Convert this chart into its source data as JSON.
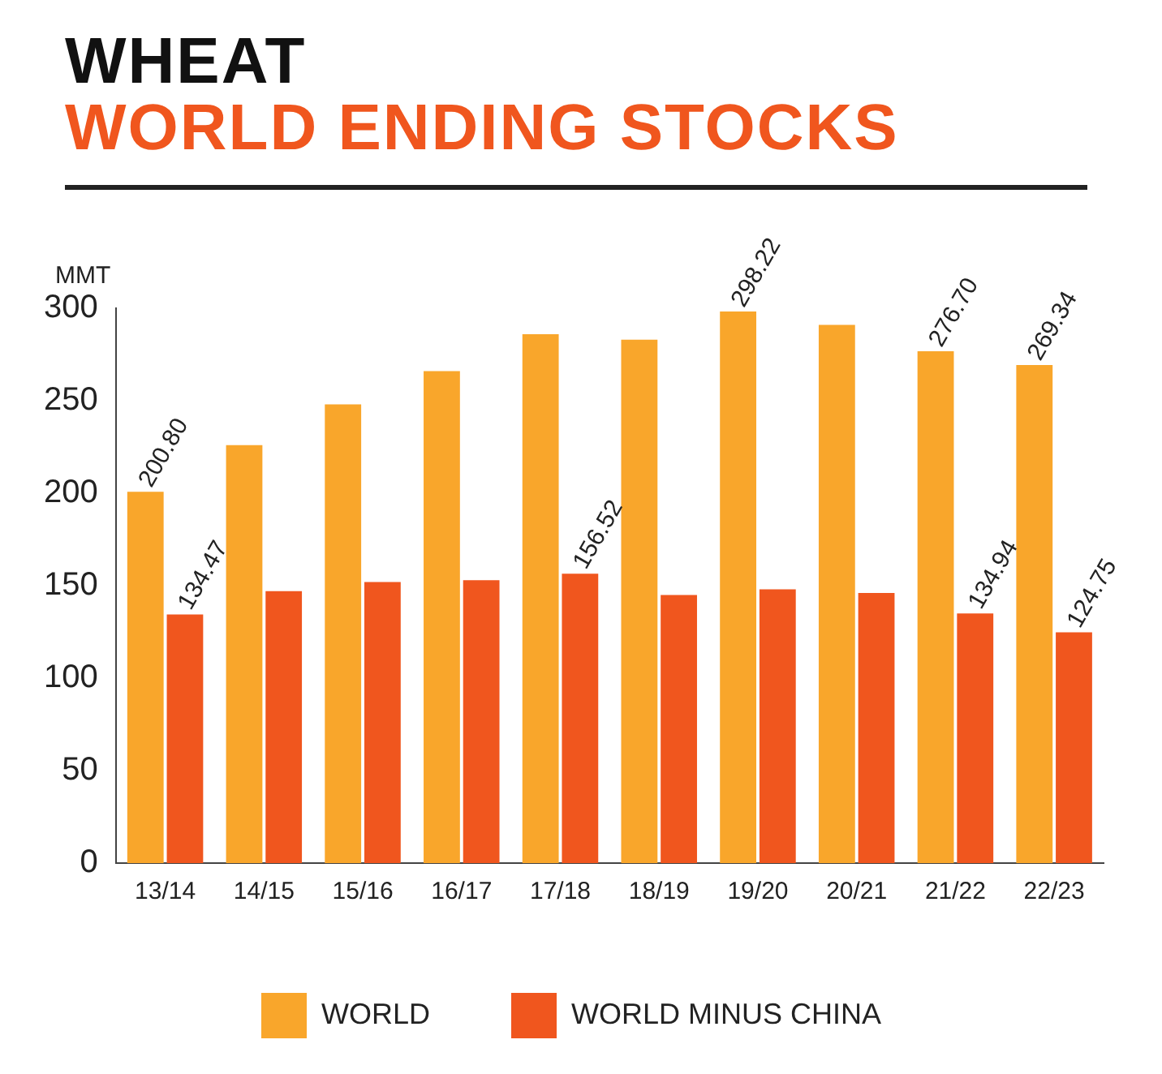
{
  "chart_data": {
    "type": "bar",
    "title": "WHEAT",
    "subtitle": "WORLD ENDING STOCKS",
    "ylabel": "MMT",
    "categories": [
      "13/14",
      "14/15",
      "15/16",
      "16/17",
      "17/18",
      "18/19",
      "19/20",
      "20/21",
      "21/22",
      "22/23"
    ],
    "series": [
      {
        "name": "WORLD",
        "color": "#f9a62b",
        "values": [
          200.8,
          226,
          248,
          266,
          286,
          283,
          298.22,
          291,
          276.7,
          269.34
        ],
        "value_labels": [
          "200.80",
          null,
          null,
          null,
          null,
          null,
          "298.22",
          null,
          "276.70",
          "269.34"
        ]
      },
      {
        "name": "WORLD MINUS CHINA",
        "color": "#f0561e",
        "values": [
          134.47,
          147,
          152,
          153,
          156.52,
          145,
          148,
          146,
          134.94,
          124.75
        ],
        "value_labels": [
          "134.47",
          null,
          null,
          null,
          "156.52",
          null,
          null,
          null,
          "134.94",
          "124.75"
        ]
      }
    ],
    "ylim": [
      0,
      300
    ],
    "yticks": [
      0,
      50,
      100,
      150,
      200,
      250,
      300
    ],
    "grid": false,
    "legend": "bottom"
  }
}
